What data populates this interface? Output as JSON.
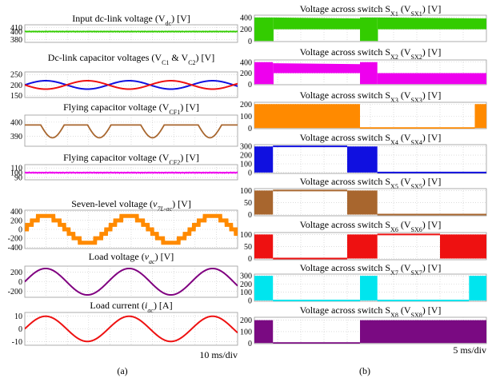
{
  "figure": {
    "left_label": "(a)",
    "right_label": "(b)",
    "left_timebase": "10 ms/div",
    "right_timebase": "5 ms/div"
  },
  "colors": {
    "green": "#33cc00",
    "blue": "#1010e0",
    "red": "#ee1111",
    "brown": "#a8662e",
    "magenta": "#ee00ee",
    "orange": "#ff8a00",
    "purple": "#800080",
    "cyan": "#00e5ee",
    "darkpurple": "#7a0a82"
  },
  "chart_data": [
    {
      "type": "line",
      "panel": "a1",
      "title_parts": [
        {
          "t": "Input dc-link voltage (V"
        },
        {
          "t": "dc",
          "sub": true
        },
        {
          "t": ") [V]"
        }
      ],
      "yticks": [
        410,
        400,
        380
      ],
      "ylim": [
        373,
        417
      ],
      "series": [
        {
          "name": "Vdc",
          "color": "#33cc00",
          "kind": "noisy_const",
          "level": 400,
          "ripple": 1
        }
      ]
    },
    {
      "type": "line",
      "panel": "a2",
      "title_parts": [
        {
          "t": "Dc-link capacitor voltages (V"
        },
        {
          "t": "C1",
          "sub": true
        },
        {
          "t": " & V"
        },
        {
          "t": "C2",
          "sub": true
        },
        {
          "t": ") [V]"
        }
      ],
      "yticks": [
        250,
        200,
        150
      ],
      "ylim": [
        140,
        262
      ],
      "series": [
        {
          "name": "VC1",
          "color": "#1010e0",
          "kind": "sine",
          "offset": 200,
          "amp": 20,
          "cycles": 2.55,
          "phase": 0
        },
        {
          "name": "VC2",
          "color": "#ee1111",
          "kind": "sine",
          "offset": 200,
          "amp": 20,
          "cycles": 2.55,
          "phase": 3.1416
        }
      ]
    },
    {
      "type": "line",
      "panel": "a3",
      "title_parts": [
        {
          "t": "Flying capacitor voltage (V"
        },
        {
          "t": "CF1",
          "sub": true
        },
        {
          "t": ") [V]"
        }
      ],
      "yticks": [
        400,
        390
      ],
      "ylim": [
        383,
        405
      ],
      "series": [
        {
          "name": "VCF1",
          "color": "#a8662e",
          "kind": "dips",
          "level": 398,
          "dip_depth": 9,
          "dip_centers": [
            0.13,
            0.35,
            0.6,
            0.87
          ],
          "dip_width": 0.055
        }
      ]
    },
    {
      "type": "line",
      "panel": "a4",
      "title_parts": [
        {
          "t": "Flying capacitor voltage (V"
        },
        {
          "t": "CF2",
          "sub": true
        },
        {
          "t": ") [V]"
        }
      ],
      "yticks": [
        110,
        100,
        90
      ],
      "ylim": [
        85,
        117
      ],
      "series": [
        {
          "name": "VCF2",
          "color": "#ee00ee",
          "kind": "noisy_const",
          "level": 100,
          "ripple": 1
        }
      ]
    },
    {
      "type": "line",
      "panel": "a5",
      "title_parts": [
        {
          "t": "Seven-level voltage ("
        },
        {
          "t": "v",
          "it": true
        },
        {
          "t": "7L-ac",
          "sub": true,
          "it": true
        },
        {
          "t": ") [V]"
        }
      ],
      "yticks": [
        400,
        200,
        0,
        -200,
        -400
      ],
      "ylim": [
        -430,
        430
      ],
      "series": [
        {
          "name": "v7L-ac",
          "color": "#ff8a00",
          "kind": "staircase",
          "amp": 300,
          "cycles": 2.55,
          "levels": 3
        }
      ]
    },
    {
      "type": "line",
      "panel": "a6",
      "title_parts": [
        {
          "t": "Load voltage ("
        },
        {
          "t": "v",
          "it": true
        },
        {
          "t": "ac",
          "sub": true,
          "it": true
        },
        {
          "t": ") [V]"
        }
      ],
      "yticks": [
        200,
        0,
        -200
      ],
      "ylim": [
        -330,
        330
      ],
      "series": [
        {
          "name": "vac",
          "color": "#800080",
          "kind": "sine",
          "offset": 0,
          "amp": 280,
          "cycles": 2.55,
          "phase": 0
        }
      ]
    },
    {
      "type": "line",
      "panel": "a7",
      "title_parts": [
        {
          "t": "Load current ("
        },
        {
          "t": "i",
          "it": true
        },
        {
          "t": "ac",
          "sub": true,
          "it": true
        },
        {
          "t": ") [A]"
        }
      ],
      "yticks": [
        10,
        0,
        -10
      ],
      "ylim": [
        -13,
        13
      ],
      "series": [
        {
          "name": "iac",
          "color": "#ee1111",
          "kind": "sine",
          "offset": 0,
          "amp": 10,
          "cycles": 2.55,
          "phase": 0
        }
      ]
    },
    {
      "type": "line",
      "panel": "b1",
      "title_parts": [
        {
          "t": "Voltage across switch S"
        },
        {
          "t": "X1",
          "sub": true
        },
        {
          "t": " (V"
        },
        {
          "t": "SX1",
          "sub": true
        },
        {
          "t": ") [V]"
        }
      ],
      "yticks": [
        400,
        200,
        0
      ],
      "ylim": [
        -10,
        440
      ],
      "series": [
        {
          "name": "VSX1",
          "color": "#33cc00",
          "kind": "pwm",
          "segments": [
            [
              0.0,
              0.08,
              400,
              0
            ],
            [
              0.08,
              0.455,
              400,
              200
            ],
            [
              0.455,
              0.53,
              400,
              0
            ],
            [
              0.53,
              1.0,
              400,
              200
            ]
          ]
        }
      ]
    },
    {
      "type": "line",
      "panel": "b2",
      "title_parts": [
        {
          "t": "Voltage across switch S"
        },
        {
          "t": "X2",
          "sub": true
        },
        {
          "t": " (V"
        },
        {
          "t": "SX2",
          "sub": true
        },
        {
          "t": ") [V]"
        }
      ],
      "yticks": [
        400,
        200,
        0
      ],
      "ylim": [
        -10,
        440
      ],
      "series": [
        {
          "name": "VSX2",
          "color": "#ee00ee",
          "kind": "pwm",
          "segments": [
            [
              0.0,
              0.08,
              400,
              0
            ],
            [
              0.08,
              0.455,
              380,
              200
            ],
            [
              0.455,
              0.53,
              400,
              0
            ],
            [
              0.53,
              1.0,
              200,
              0
            ]
          ]
        }
      ]
    },
    {
      "type": "line",
      "panel": "b3",
      "title_parts": [
        {
          "t": "Voltage across switch S"
        },
        {
          "t": "X3",
          "sub": true
        },
        {
          "t": " (V"
        },
        {
          "t": "SX3",
          "sub": true
        },
        {
          "t": ") [V]"
        }
      ],
      "yticks": [
        200,
        100,
        0
      ],
      "ylim": [
        -5,
        215
      ],
      "series": [
        {
          "name": "VSX3",
          "color": "#ff8a00",
          "kind": "pwm",
          "segments": [
            [
              0.0,
              0.455,
              200,
              0
            ],
            [
              0.455,
              0.95,
              "line0"
            ],
            [
              0.95,
              1.0,
              200,
              0
            ]
          ]
        }
      ]
    },
    {
      "type": "line",
      "panel": "b4",
      "title_parts": [
        {
          "t": "Voltage across switch S"
        },
        {
          "t": "X4",
          "sub": true
        },
        {
          "t": " (V"
        },
        {
          "t": "SX4",
          "sub": true
        },
        {
          "t": ") [V]"
        }
      ],
      "yticks": [
        300,
        200,
        100,
        0
      ],
      "ylim": [
        -10,
        320
      ],
      "series": [
        {
          "name": "VSX4",
          "color": "#1010e0",
          "kind": "pwm",
          "segments": [
            [
              0.0,
              0.08,
              300,
              0
            ],
            [
              0.08,
              0.4,
              "line300"
            ],
            [
              0.4,
              0.455,
              300,
              0
            ],
            [
              0.455,
              0.53,
              300,
              0
            ],
            [
              0.53,
              1.0,
              "line0"
            ]
          ]
        }
      ]
    },
    {
      "type": "line",
      "panel": "b5",
      "title_parts": [
        {
          "t": "Voltage across switch S"
        },
        {
          "t": "X5",
          "sub": true
        },
        {
          "t": " (V"
        },
        {
          "t": "SX5",
          "sub": true
        },
        {
          "t": ") [V]"
        }
      ],
      "yticks": [
        100,
        50,
        0
      ],
      "ylim": [
        -5,
        108
      ],
      "series": [
        {
          "name": "VSX5",
          "color": "#a8662e",
          "kind": "pwm",
          "segments": [
            [
              0.0,
              0.08,
              100,
              0
            ],
            [
              0.08,
              0.4,
              "line100"
            ],
            [
              0.4,
              0.53,
              100,
              0
            ],
            [
              0.53,
              1.0,
              "line0"
            ]
          ]
        }
      ]
    },
    {
      "type": "line",
      "panel": "b6",
      "title_parts": [
        {
          "t": "Voltage across switch S"
        },
        {
          "t": "X6",
          "sub": true
        },
        {
          "t": " (V"
        },
        {
          "t": "SX6",
          "sub": true
        },
        {
          "t": ") [V]"
        }
      ],
      "yticks": [
        100,
        50,
        0
      ],
      "ylim": [
        -5,
        108
      ],
      "series": [
        {
          "name": "VSX6",
          "color": "#ee1111",
          "kind": "pwm",
          "segments": [
            [
              0.0,
              0.08,
              100,
              0
            ],
            [
              0.08,
              0.4,
              "line0"
            ],
            [
              0.4,
              0.53,
              100,
              0
            ],
            [
              0.53,
              0.8,
              "line100"
            ],
            [
              0.8,
              1.0,
              100,
              0
            ]
          ]
        }
      ]
    },
    {
      "type": "line",
      "panel": "b7",
      "title_parts": [
        {
          "t": "Voltage across switch S"
        },
        {
          "t": "X7",
          "sub": true
        },
        {
          "t": " (V"
        },
        {
          "t": "SX7",
          "sub": true
        },
        {
          "t": ") [V]"
        }
      ],
      "yticks": [
        300,
        200,
        100,
        0
      ],
      "ylim": [
        -10,
        320
      ],
      "series": [
        {
          "name": "VSX7",
          "color": "#00e5ee",
          "kind": "pwm",
          "segments": [
            [
              0.0,
              0.08,
              300,
              0
            ],
            [
              0.08,
              0.455,
              "line0"
            ],
            [
              0.455,
              0.53,
              300,
              0
            ],
            [
              0.53,
              0.925,
              "line0"
            ],
            [
              0.925,
              1.0,
              300,
              0
            ]
          ]
        }
      ]
    },
    {
      "type": "line",
      "panel": "b8",
      "title_parts": [
        {
          "t": "Voltage across switch S"
        },
        {
          "t": "X8",
          "sub": true
        },
        {
          "t": " (V"
        },
        {
          "t": "SX8",
          "sub": true
        },
        {
          "t": ") [V]"
        }
      ],
      "yticks": [
        200,
        100,
        0
      ],
      "ylim": [
        -5,
        225
      ],
      "series": [
        {
          "name": "VSX8",
          "color": "#7a0a82",
          "kind": "pwm",
          "segments": [
            [
              0.0,
              0.08,
              200,
              0
            ],
            [
              0.08,
              0.455,
              "line0"
            ],
            [
              0.455,
              1.0,
              200,
              0
            ]
          ]
        }
      ]
    }
  ]
}
